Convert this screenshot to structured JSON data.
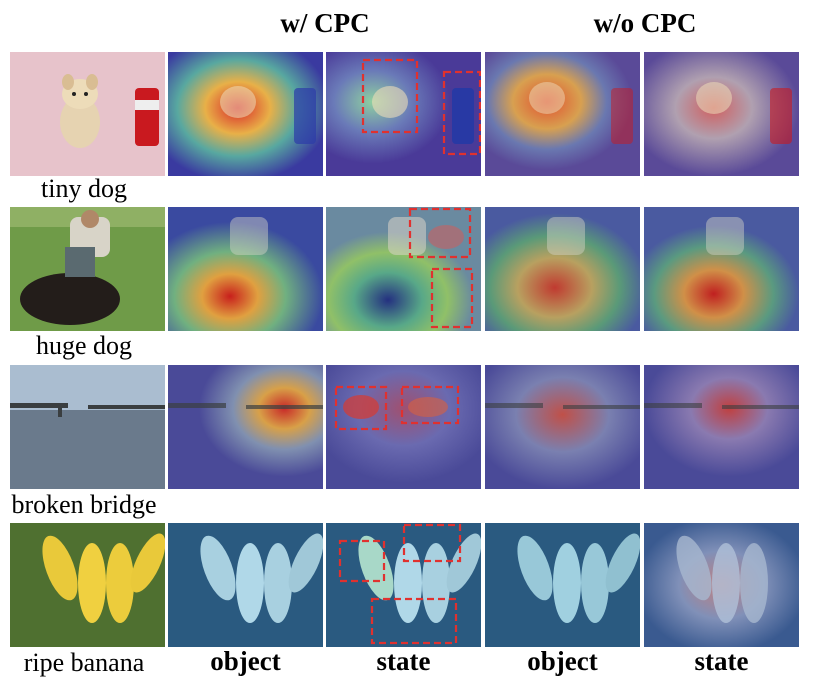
{
  "headers": {
    "with_cpc": "w/ CPC",
    "without_cpc": "w/o CPC"
  },
  "rows": [
    {
      "label": "tiny dog"
    },
    {
      "label": "huge dog"
    },
    {
      "label": "broken bridge"
    },
    {
      "label": "ripe banana"
    }
  ],
  "column_labels": [
    "object",
    "state",
    "object",
    "state"
  ],
  "colors": {
    "box": "#e0312f",
    "heat_hot": "#d8282a",
    "heat_cool": "#3a3aa0"
  },
  "icons": {
    "dashed_box": "red-dashed-highlight-box"
  }
}
